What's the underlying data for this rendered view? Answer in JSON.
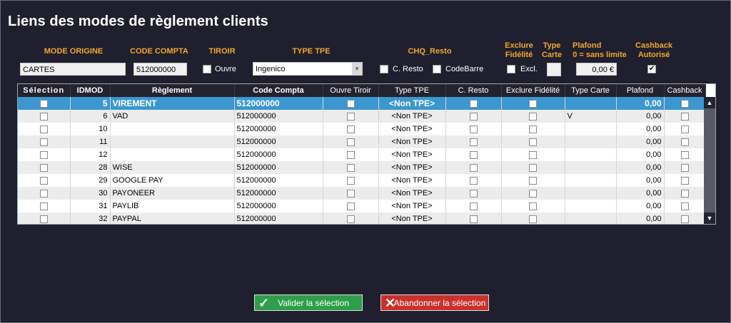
{
  "window": {
    "title": "Liens des modes de règlement clients"
  },
  "form": {
    "mode_origine": {
      "label": "MODE ORIGINE",
      "value": "CARTES"
    },
    "code_compta": {
      "label": "CODE COMPTA",
      "value": "512000000"
    },
    "tiroir": {
      "label": "TIROIR",
      "checkbox_label": "Ouvre"
    },
    "type_tpe": {
      "label": "TYPE TPE",
      "value": "Ingenico"
    },
    "chq_resto": {
      "label": "CHQ_Resto",
      "option1": "C. Resto",
      "option2": "CodeBarre"
    },
    "exclure_fidelite": {
      "label_line1": "Exclure",
      "label_line2": "Fidélité",
      "checkbox_label": "Excl."
    },
    "type_carte": {
      "label_line1": "Type",
      "label_line2": "Carte"
    },
    "plafond": {
      "label_line1": "Plafond",
      "label_line2": "0 = sans limite",
      "value": "0,00 €"
    },
    "cashback": {
      "label_line1": "Cashback",
      "label_line2": "Autorisé",
      "checked": true
    }
  },
  "table": {
    "columns": [
      "Sélection",
      "IDMOD",
      "Règlement",
      "Code Compta",
      "Ouvre Tiroir",
      "Type TPE",
      "C. Resto",
      "Exclure Fidélité",
      "Type Carte",
      "Plafond",
      "Cashback"
    ],
    "rows": [
      {
        "idmod": "5",
        "reglement": "VIREMENT",
        "code": "512000000",
        "tpe": "<Non TPE>",
        "type_carte": "",
        "plafond": "0,00"
      },
      {
        "idmod": "6",
        "reglement": "VAD",
        "code": "512000000",
        "tpe": "<Non TPE>",
        "type_carte": "V",
        "plafond": "0,00"
      },
      {
        "idmod": "10",
        "reglement": "",
        "code": "512000000",
        "tpe": "<Non TPE>",
        "type_carte": "",
        "plafond": "0,00"
      },
      {
        "idmod": "11",
        "reglement": "",
        "code": "512000000",
        "tpe": "<Non TPE>",
        "type_carte": "",
        "plafond": "0,00"
      },
      {
        "idmod": "12",
        "reglement": "",
        "code": "512000000",
        "tpe": "<Non TPE>",
        "type_carte": "",
        "plafond": "0,00"
      },
      {
        "idmod": "28",
        "reglement": "WISE",
        "code": "512000000",
        "tpe": "<Non TPE>",
        "type_carte": "",
        "plafond": "0,00"
      },
      {
        "idmod": "29",
        "reglement": "GOOGLE PAY",
        "code": "512000000",
        "tpe": "<Non TPE>",
        "type_carte": "",
        "plafond": "0,00"
      },
      {
        "idmod": "30",
        "reglement": "PAYONEER",
        "code": "512000000",
        "tpe": "<Non TPE>",
        "type_carte": "",
        "plafond": "0,00"
      },
      {
        "idmod": "31",
        "reglement": "PAYLIB",
        "code": "512000000",
        "tpe": "<Non TPE>",
        "type_carte": "",
        "plafond": "0,00"
      },
      {
        "idmod": "32",
        "reglement": "PAYPAL",
        "code": "512000000",
        "tpe": "<Non TPE>",
        "type_carte": "",
        "plafond": "0,00"
      }
    ],
    "selected_row": 0
  },
  "buttons": {
    "validate": "Valider la sélection",
    "abandon": "Abandonner la sélection"
  },
  "colors": {
    "accent": "#f0a830",
    "selected_row": "#3c97cf",
    "validate": "#2e9e4a",
    "abandon": "#c8312c",
    "background": "#1f1f2e"
  }
}
